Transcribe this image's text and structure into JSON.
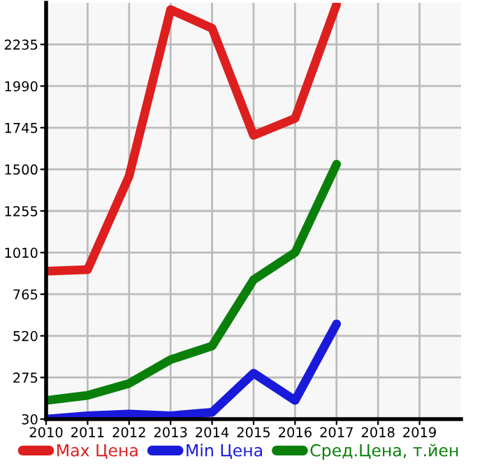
{
  "chart_data": {
    "type": "line",
    "x": [
      2010,
      2011,
      2012,
      2013,
      2014,
      2015,
      2016,
      2017
    ],
    "series": [
      {
        "name": "Max Цена",
        "color": "#dd1f1f",
        "values": [
          900,
          910,
          1460,
          2440,
          2330,
          1700,
          1800,
          2470
        ]
      },
      {
        "name": "Min Цена",
        "color": "#1a1adb",
        "values": [
          30,
          50,
          60,
          50,
          70,
          300,
          140,
          590
        ]
      },
      {
        "name": "Сред.Цена, т.йен",
        "color": "#0a800a",
        "values": [
          140,
          170,
          240,
          380,
          460,
          850,
          1010,
          1530
        ]
      }
    ],
    "xlim": [
      2010,
      2020
    ],
    "xticks": [
      2010,
      2011,
      2012,
      2013,
      2014,
      2015,
      2016,
      2017,
      2018,
      2019
    ],
    "ylim": [
      30,
      2480
    ],
    "yticks": [
      30,
      275,
      520,
      765,
      1010,
      1255,
      1500,
      1745,
      1990,
      2235
    ],
    "grid": true,
    "legend": "bottom",
    "marker": "none",
    "line_style": "solid"
  }
}
